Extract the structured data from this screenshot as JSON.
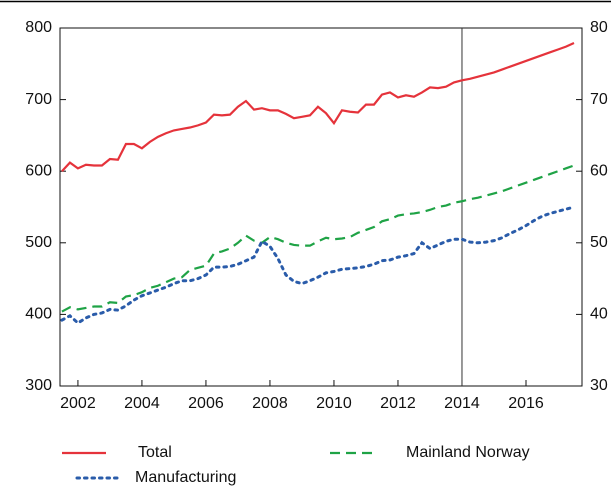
{
  "chart_data": {
    "type": "line",
    "x": [
      2001.5,
      2001.75,
      2002,
      2002.25,
      2002.5,
      2002.75,
      2003,
      2003.25,
      2003.5,
      2003.75,
      2004,
      2004.25,
      2004.5,
      2004.75,
      2005,
      2005.25,
      2005.5,
      2005.75,
      2006,
      2006.25,
      2006.5,
      2006.75,
      2007,
      2007.25,
      2007.5,
      2007.75,
      2008,
      2008.25,
      2008.5,
      2008.75,
      2009,
      2009.25,
      2009.5,
      2009.75,
      2010,
      2010.25,
      2010.5,
      2010.75,
      2011,
      2011.25,
      2011.5,
      2011.75,
      2012,
      2012.25,
      2012.5,
      2012.75,
      2013,
      2013.25,
      2013.5,
      2013.75,
      2014,
      2014.25,
      2014.5,
      2014.75,
      2015,
      2015.25,
      2015.5,
      2015.75,
      2016,
      2016.25,
      2016.5,
      2016.75,
      2017,
      2017.25,
      2017.5
    ],
    "series": [
      {
        "name": "Total",
        "color": "#e5333b",
        "dash": "solid",
        "values": [
          600,
          612,
          604,
          609,
          608,
          608,
          617,
          616,
          638,
          638,
          632,
          641,
          648,
          653,
          657,
          659,
          661,
          664,
          668,
          679,
          678,
          679,
          690,
          698,
          686,
          688,
          685,
          685,
          680,
          674,
          676,
          678,
          690,
          681,
          667,
          685,
          683,
          682,
          693,
          693,
          707,
          710,
          703,
          706,
          704,
          710,
          717,
          716,
          718,
          724,
          727,
          729,
          732,
          735,
          738,
          742,
          746,
          750,
          754,
          758,
          762,
          766,
          770,
          774,
          779
        ]
      },
      {
        "name": "Mainland Norway",
        "color": "#1fa346",
        "dash": "dashed",
        "values": [
          404,
          410,
          407,
          409,
          411,
          411,
          417,
          416,
          425,
          427,
          431,
          437,
          440,
          445,
          450,
          452,
          462,
          465,
          468,
          485,
          488,
          492,
          500,
          510,
          503,
          500,
          508,
          505,
          500,
          497,
          496,
          496,
          502,
          507,
          505,
          506,
          508,
          514,
          518,
          522,
          530,
          533,
          538,
          540,
          541,
          543,
          546,
          550,
          552,
          556,
          558,
          561,
          563,
          566,
          569,
          572,
          576,
          580,
          584,
          588,
          592,
          596,
          600,
          604,
          608
        ]
      },
      {
        "name": "Manufacturing",
        "color": "#2a5caa",
        "dash": "dotted",
        "values": [
          392,
          398,
          388,
          395,
          400,
          402,
          407,
          406,
          412,
          420,
          426,
          430,
          434,
          438,
          443,
          447,
          447,
          450,
          455,
          466,
          466,
          467,
          470,
          475,
          480,
          502,
          495,
          478,
          455,
          446,
          443,
          447,
          452,
          458,
          460,
          463,
          464,
          465,
          467,
          470,
          475,
          476,
          480,
          482,
          485,
          500,
          492,
          497,
          502,
          505,
          505,
          501,
          500,
          501,
          503,
          507,
          513,
          518,
          524,
          531,
          537,
          541,
          544,
          547,
          550
        ]
      }
    ],
    "xlim": [
      2001.44,
      2017.75
    ],
    "xticks": [
      2002,
      2004,
      2006,
      2008,
      2010,
      2012,
      2014,
      2016
    ],
    "ylim": [
      300,
      800
    ],
    "yticks": [
      300,
      400,
      500,
      600,
      700,
      800
    ],
    "y2lim": [
      30,
      80
    ],
    "y2ticks": [
      30,
      40,
      50,
      60,
      70,
      80
    ],
    "vline": 2014
  }
}
